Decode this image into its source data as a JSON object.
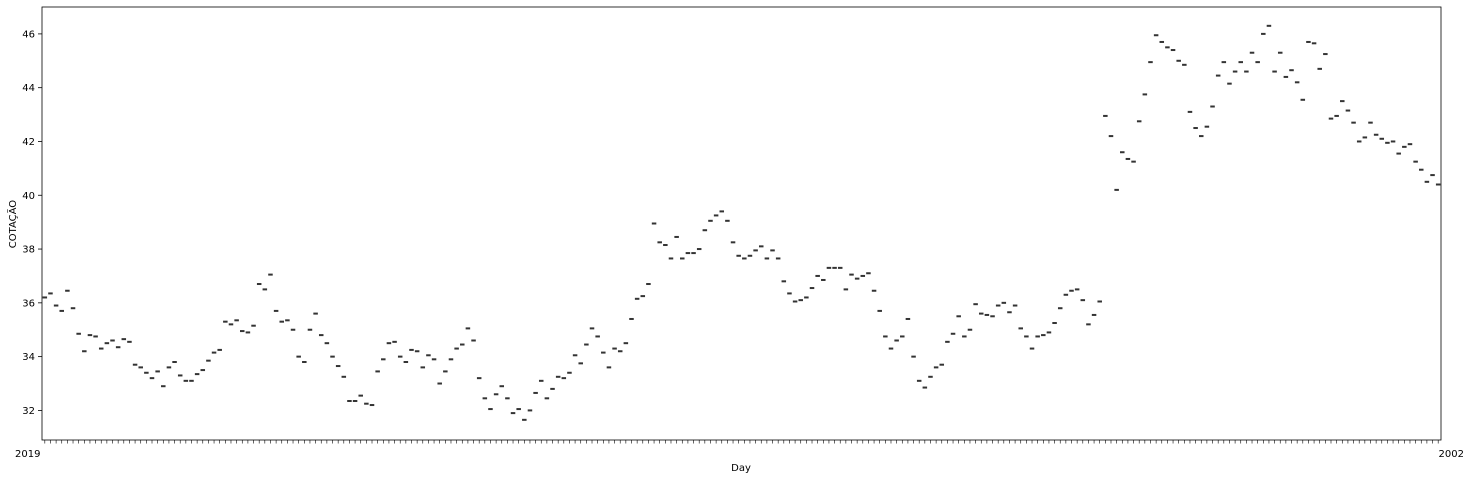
{
  "chart_data": {
    "type": "box",
    "xlabel": "Day",
    "ylabel": "COTAÇÃO",
    "ylim": [
      30.9,
      47.0
    ],
    "yticks": [
      32,
      34,
      36,
      38,
      40,
      42,
      44,
      46
    ],
    "xtick_first_label": "2019",
    "xtick_last_label": "2002",
    "color": "#333333",
    "grid": false,
    "values": [
      36.2,
      36.35,
      35.9,
      35.7,
      36.45,
      35.8,
      34.85,
      34.2,
      34.8,
      34.75,
      34.3,
      34.5,
      34.6,
      34.35,
      34.65,
      34.55,
      33.7,
      33.6,
      33.4,
      33.2,
      33.45,
      32.9,
      33.6,
      33.8,
      33.3,
      33.1,
      33.1,
      33.35,
      33.5,
      33.85,
      34.15,
      34.25,
      35.3,
      35.2,
      35.35,
      34.95,
      34.9,
      35.15,
      36.7,
      36.5,
      37.05,
      35.7,
      35.3,
      35.35,
      35.0,
      34.0,
      33.8,
      35.0,
      35.6,
      34.8,
      34.5,
      34.0,
      33.65,
      33.25,
      32.35,
      32.35,
      32.55,
      32.25,
      32.2,
      33.45,
      33.9,
      34.5,
      34.55,
      34.0,
      33.8,
      34.25,
      34.2,
      33.6,
      34.05,
      33.9,
      33.0,
      33.45,
      33.9,
      34.3,
      34.45,
      35.05,
      34.6,
      33.2,
      32.45,
      32.05,
      32.6,
      32.9,
      32.45,
      31.9,
      32.05,
      31.65,
      32.0,
      32.65,
      33.1,
      32.45,
      32.8,
      33.25,
      33.2,
      33.4,
      34.05,
      33.75,
      34.45,
      35.05,
      34.75,
      34.15,
      33.6,
      34.3,
      34.2,
      34.5,
      35.4,
      36.15,
      36.25,
      36.7,
      38.95,
      38.25,
      38.15,
      37.65,
      38.45,
      37.65,
      37.85,
      37.85,
      38.0,
      38.7,
      39.05,
      39.25,
      39.4,
      39.05,
      38.25,
      37.75,
      37.65,
      37.75,
      37.95,
      38.1,
      37.65,
      37.95,
      37.65,
      36.8,
      36.35,
      36.05,
      36.1,
      36.2,
      36.55,
      37.0,
      36.85,
      37.3,
      37.3,
      37.3,
      36.5,
      37.05,
      36.9,
      37.0,
      37.1,
      36.45,
      35.7,
      34.75,
      34.3,
      34.6,
      34.75,
      35.4,
      34.0,
      33.1,
      32.85,
      33.25,
      33.6,
      33.7,
      34.55,
      34.85,
      35.5,
      34.75,
      35.0,
      35.95,
      35.6,
      35.55,
      35.5,
      35.9,
      36.0,
      35.65,
      35.9,
      35.05,
      34.75,
      34.3,
      34.75,
      34.8,
      34.9,
      35.25,
      35.8,
      36.3,
      36.45,
      36.5,
      36.1,
      35.2,
      35.55,
      36.05,
      42.95,
      42.2,
      40.2,
      41.6,
      41.35,
      41.25,
      42.75,
      43.75,
      44.95,
      45.95,
      45.7,
      45.5,
      45.4,
      45.0,
      44.85,
      43.1,
      42.5,
      42.2,
      42.55,
      43.3,
      44.45,
      44.95,
      44.15,
      44.6,
      44.95,
      44.6,
      45.3,
      44.95,
      46.0,
      46.3,
      44.6,
      45.3,
      44.4,
      44.65,
      44.2,
      43.55,
      45.7,
      45.65,
      44.7,
      45.25,
      42.85,
      42.95,
      43.5,
      43.15,
      42.7,
      42.0,
      42.15,
      42.7,
      42.25,
      42.1,
      41.95,
      42.0,
      41.55,
      41.8,
      41.9,
      41.25,
      40.95,
      40.5,
      40.75,
      40.4
    ]
  }
}
